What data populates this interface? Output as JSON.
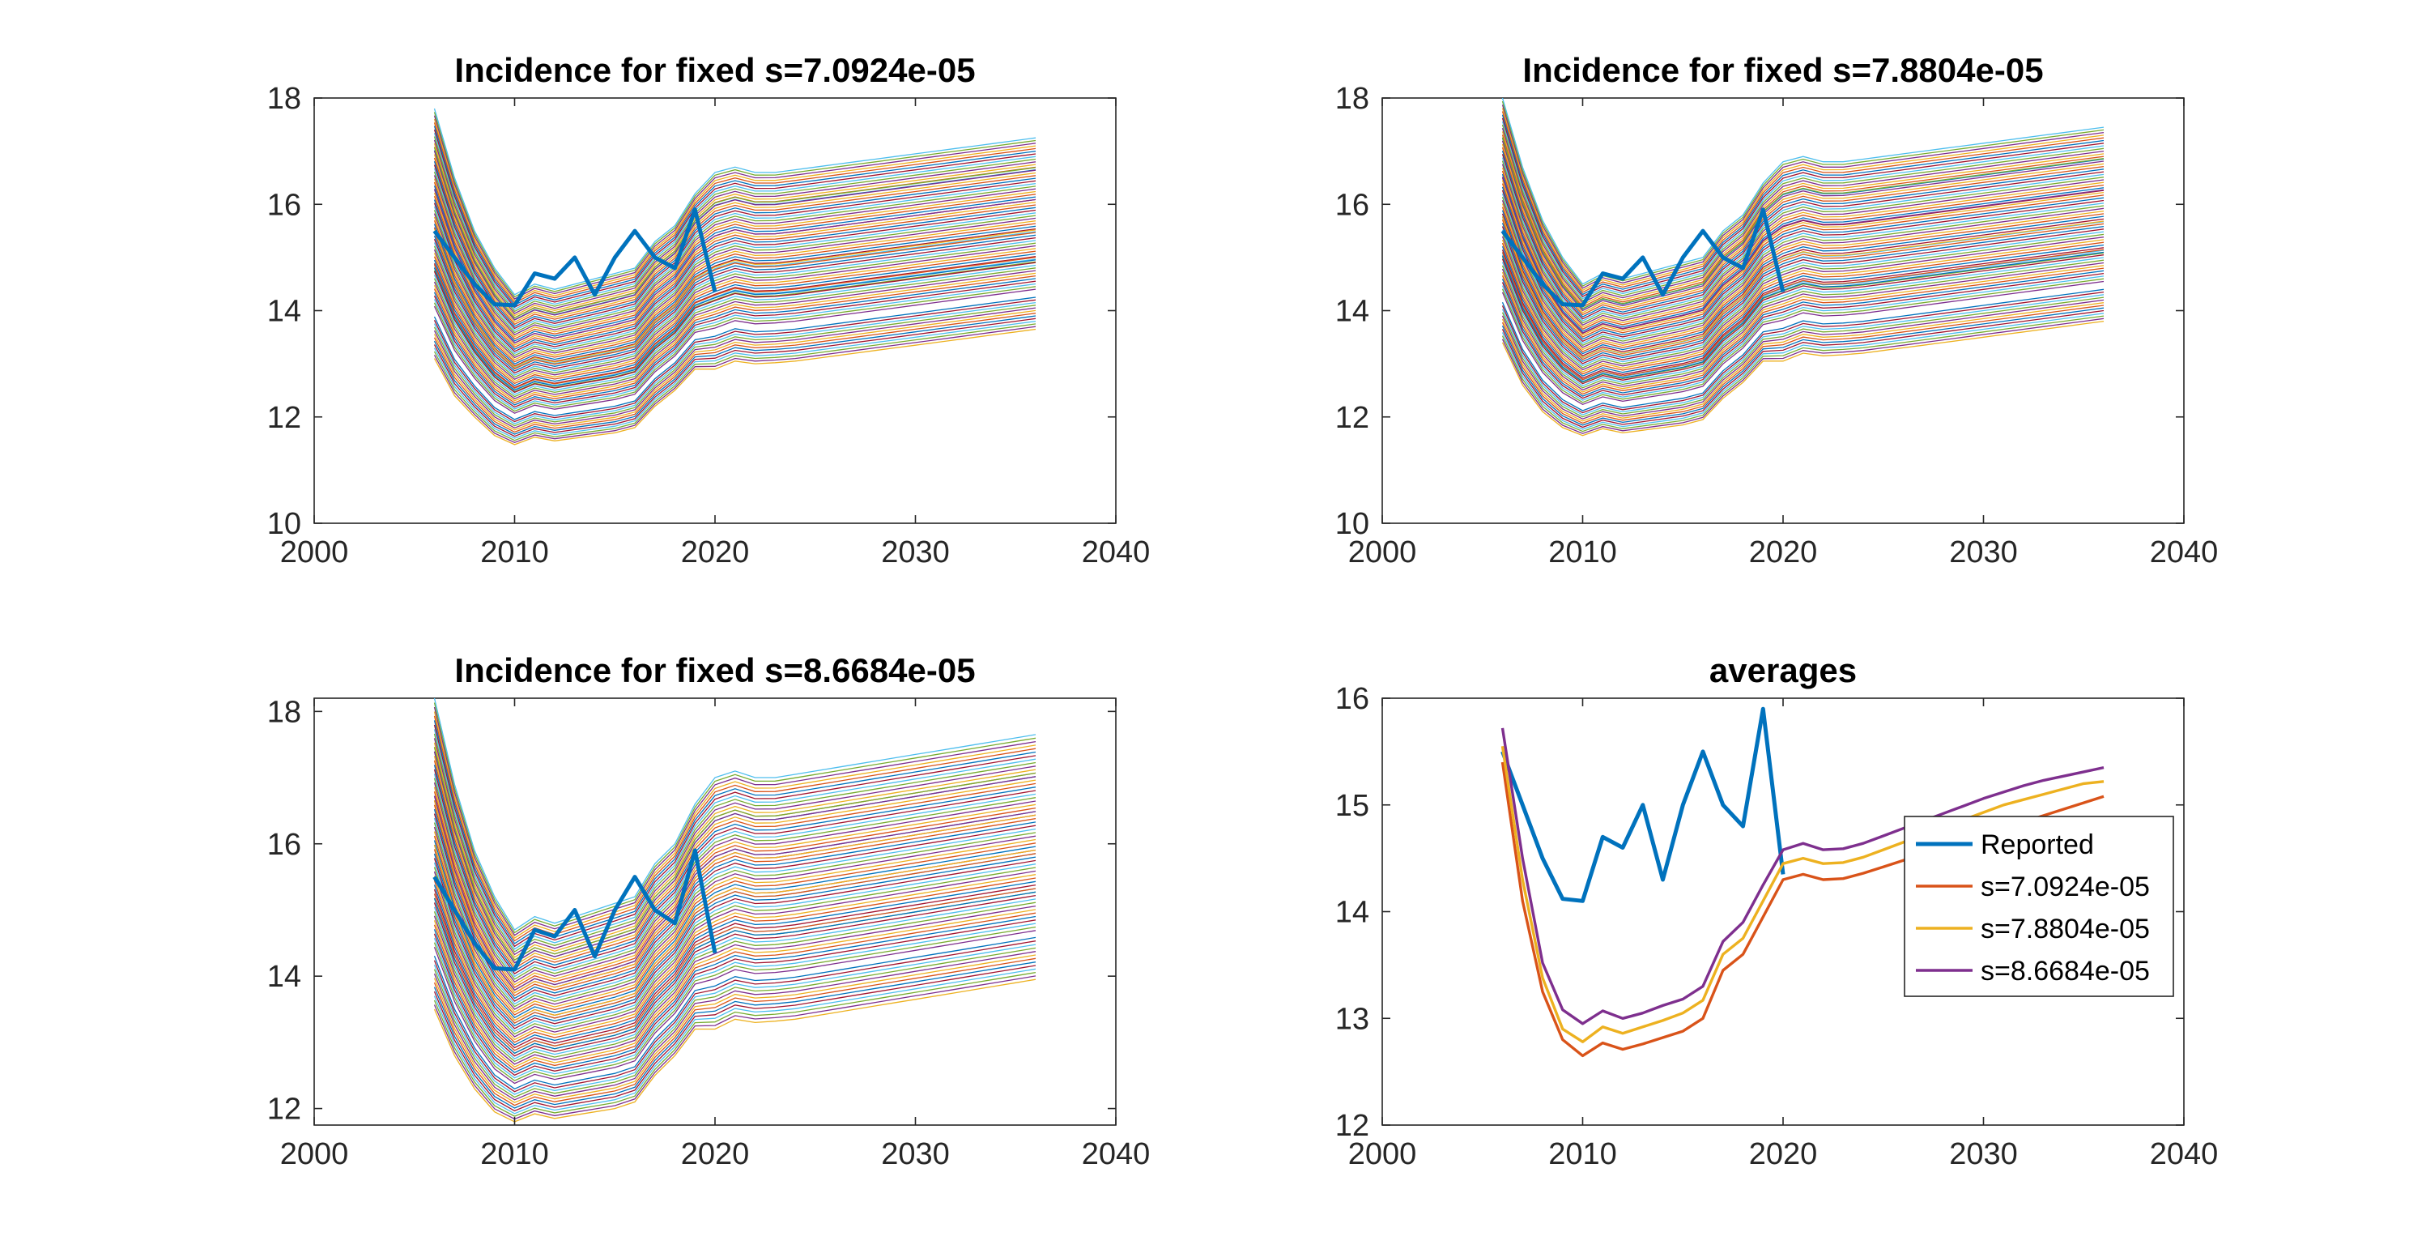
{
  "figure": {
    "background": "#ffffff",
    "axis_color": "#262626",
    "series_palette": [
      "#0072BD",
      "#D95319",
      "#EDB120",
      "#7E2F8E",
      "#77AC30",
      "#4DBEEE",
      "#A2142F"
    ]
  },
  "chart_data": [
    {
      "type": "line",
      "title": "Incidence for fixed s=7.0924e-05",
      "xlim": [
        2000,
        2040
      ],
      "ylim": [
        10,
        18
      ],
      "xticks": [
        "2000",
        "2010",
        "2020",
        "2030",
        "2040"
      ],
      "yticks": [
        "10",
        "12",
        "14",
        "16",
        "18"
      ],
      "grid": false,
      "x": [
        2006,
        2007,
        2008,
        2009,
        2010,
        2011,
        2012,
        2013,
        2014,
        2015,
        2016,
        2017,
        2018,
        2019,
        2020,
        2021,
        2022,
        2023,
        2024,
        2025,
        2026,
        2027,
        2028,
        2029,
        2030,
        2031,
        2032,
        2033,
        2034,
        2035,
        2036
      ],
      "ensemble": {
        "band_centers": [
          15.77,
          15.25,
          14.69,
          14.16,
          13.68,
          12.98
        ],
        "band_spread": 0.28,
        "lines_per_band": 13,
        "shape_offsets": [
          2.25,
          1.25,
          0.55,
          0.05,
          -0.2,
          -0.05,
          -0.15,
          -0.08,
          0.0,
          0.1,
          0.25,
          0.95,
          1.25,
          2.0,
          2.65,
          2.8,
          2.75,
          2.75,
          2.78,
          2.82,
          2.88,
          2.94,
          3.0,
          3.06,
          3.12,
          3.18,
          3.24,
          3.3,
          3.36,
          3.42,
          3.48
        ],
        "low_base": [
          13.1,
          12.4,
          12.0,
          11.65,
          11.48,
          11.62,
          11.55,
          11.6,
          11.65,
          11.7,
          11.8,
          12.2,
          12.5,
          12.9,
          12.9,
          13.05,
          13.0,
          13.02,
          13.05,
          13.1,
          13.15,
          13.2,
          13.25,
          13.3,
          13.35,
          13.4,
          13.45,
          13.5,
          13.55,
          13.6,
          13.65
        ],
        "high_base": [
          17.8,
          16.5,
          15.5,
          14.8,
          14.3,
          14.5,
          14.4,
          14.5,
          14.6,
          14.7,
          14.8,
          15.3,
          15.6,
          16.2,
          16.6,
          16.7,
          16.6,
          16.6,
          16.65,
          16.7,
          16.75,
          16.8,
          16.85,
          16.9,
          16.95,
          17.0,
          17.05,
          17.1,
          17.15,
          17.2,
          17.25
        ]
      },
      "series": [
        {
          "name": "Reported",
          "x": [
            2006,
            2007,
            2008,
            2009,
            2010,
            2011,
            2012,
            2013,
            2014,
            2015,
            2016,
            2017,
            2018,
            2019,
            2020
          ],
          "values": [
            15.5,
            15.0,
            14.5,
            14.12,
            14.1,
            14.7,
            14.6,
            15.0,
            14.3,
            15.0,
            15.5,
            15.0,
            14.8,
            15.9,
            14.35
          ],
          "color": "#0072BD"
        }
      ]
    },
    {
      "type": "line",
      "title": "Incidence for fixed s=7.8804e-05",
      "xlim": [
        2000,
        2040
      ],
      "ylim": [
        10,
        18
      ],
      "xticks": [
        "2000",
        "2010",
        "2020",
        "2030",
        "2040"
      ],
      "yticks": [
        "10",
        "12",
        "14",
        "16",
        "18"
      ],
      "grid": false,
      "x": [
        2006,
        2007,
        2008,
        2009,
        2010,
        2011,
        2012,
        2013,
        2014,
        2015,
        2016,
        2017,
        2018,
        2019,
        2020,
        2021,
        2022,
        2023,
        2024,
        2025,
        2026,
        2027,
        2028,
        2029,
        2030,
        2031,
        2032,
        2033,
        2034,
        2035,
        2036
      ],
      "ensemble": {
        "band_centers": [
          15.95,
          15.4,
          14.85,
          14.3,
          13.8,
          13.1
        ],
        "band_spread": 0.28,
        "lines_per_band": 13,
        "shape_offsets": [
          2.3,
          1.3,
          0.6,
          0.1,
          -0.18,
          -0.05,
          -0.12,
          -0.06,
          0.02,
          0.12,
          0.28,
          0.98,
          1.28,
          2.05,
          2.72,
          2.86,
          2.8,
          2.8,
          2.83,
          2.88,
          2.94,
          3.0,
          3.06,
          3.12,
          3.18,
          3.24,
          3.3,
          3.36,
          3.42,
          3.48,
          3.54
        ],
        "low_base": [
          13.4,
          12.6,
          12.1,
          11.8,
          11.65,
          11.78,
          11.7,
          11.75,
          11.8,
          11.85,
          11.95,
          12.35,
          12.65,
          13.05,
          13.05,
          13.2,
          13.15,
          13.17,
          13.2,
          13.25,
          13.3,
          13.35,
          13.4,
          13.45,
          13.5,
          13.55,
          13.6,
          13.65,
          13.7,
          13.75,
          13.8
        ],
        "high_base": [
          18.0,
          16.7,
          15.7,
          15.0,
          14.5,
          14.7,
          14.6,
          14.7,
          14.8,
          14.9,
          15.0,
          15.5,
          15.8,
          16.4,
          16.8,
          16.9,
          16.8,
          16.8,
          16.85,
          16.9,
          16.95,
          17.0,
          17.05,
          17.1,
          17.15,
          17.2,
          17.25,
          17.3,
          17.35,
          17.4,
          17.45
        ]
      },
      "series": [
        {
          "name": "Reported",
          "x": [
            2006,
            2007,
            2008,
            2009,
            2010,
            2011,
            2012,
            2013,
            2014,
            2015,
            2016,
            2017,
            2018,
            2019,
            2020
          ],
          "values": [
            15.5,
            15.0,
            14.5,
            14.12,
            14.1,
            14.7,
            14.6,
            15.0,
            14.3,
            15.0,
            15.5,
            15.0,
            14.8,
            15.9,
            14.35
          ],
          "color": "#0072BD"
        }
      ]
    },
    {
      "type": "line",
      "title": "Incidence for fixed s=8.6684e-05",
      "xlim": [
        2000,
        2040
      ],
      "ylim": [
        11.75,
        18.2
      ],
      "xticks": [
        "2000",
        "2010",
        "2020",
        "2030",
        "2040"
      ],
      "yticks": [
        "12",
        "14",
        "16",
        "18"
      ],
      "grid": false,
      "x": [
        2006,
        2007,
        2008,
        2009,
        2010,
        2011,
        2012,
        2013,
        2014,
        2015,
        2016,
        2017,
        2018,
        2019,
        2020,
        2021,
        2022,
        2023,
        2024,
        2025,
        2026,
        2027,
        2028,
        2029,
        2030,
        2031,
        2032,
        2033,
        2034,
        2035,
        2036
      ],
      "ensemble": {
        "band_centers": [
          16.15,
          15.6,
          15.05,
          14.5,
          13.95,
          13.25
        ],
        "band_spread": 0.3,
        "lines_per_band": 13,
        "shape_offsets": [
          2.35,
          1.35,
          0.65,
          0.12,
          -0.15,
          -0.02,
          -0.1,
          -0.04,
          0.04,
          0.14,
          0.3,
          1.0,
          1.3,
          2.1,
          2.78,
          2.92,
          2.86,
          2.86,
          2.89,
          2.94,
          3.0,
          3.06,
          3.12,
          3.18,
          3.24,
          3.3,
          3.36,
          3.42,
          3.48,
          3.54,
          3.6
        ],
        "low_base": [
          13.5,
          12.8,
          12.3,
          11.95,
          11.8,
          11.92,
          11.85,
          11.9,
          11.95,
          12.0,
          12.1,
          12.5,
          12.8,
          13.2,
          13.2,
          13.35,
          13.3,
          13.32,
          13.35,
          13.4,
          13.45,
          13.5,
          13.55,
          13.6,
          13.65,
          13.7,
          13.75,
          13.8,
          13.85,
          13.9,
          13.95
        ],
        "high_base": [
          18.2,
          16.9,
          15.9,
          15.2,
          14.7,
          14.9,
          14.8,
          14.9,
          15.0,
          15.1,
          15.2,
          15.7,
          16.0,
          16.6,
          17.0,
          17.1,
          17.0,
          17.0,
          17.05,
          17.1,
          17.15,
          17.2,
          17.25,
          17.3,
          17.35,
          17.4,
          17.45,
          17.5,
          17.55,
          17.6,
          17.65
        ]
      },
      "series": [
        {
          "name": "Reported",
          "x": [
            2006,
            2007,
            2008,
            2009,
            2010,
            2011,
            2012,
            2013,
            2014,
            2015,
            2016,
            2017,
            2018,
            2019,
            2020
          ],
          "values": [
            15.5,
            15.0,
            14.5,
            14.12,
            14.1,
            14.7,
            14.6,
            15.0,
            14.3,
            15.0,
            15.5,
            15.0,
            14.8,
            15.9,
            14.35
          ],
          "color": "#0072BD"
        }
      ]
    },
    {
      "type": "line",
      "title": "averages",
      "xlim": [
        2000,
        2040
      ],
      "ylim": [
        12,
        16
      ],
      "xticks": [
        "2000",
        "2010",
        "2020",
        "2030",
        "2040"
      ],
      "yticks": [
        "12",
        "13",
        "14",
        "15",
        "16"
      ],
      "grid": false,
      "legend": "right",
      "x": [
        2006,
        2007,
        2008,
        2009,
        2010,
        2011,
        2012,
        2013,
        2014,
        2015,
        2016,
        2017,
        2018,
        2019,
        2020,
        2021,
        2022,
        2023,
        2024,
        2025,
        2026,
        2027,
        2028,
        2029,
        2030,
        2031,
        2032,
        2033,
        2034,
        2035,
        2036
      ],
      "series": [
        {
          "name": "Reported",
          "x": [
            2006,
            2007,
            2008,
            2009,
            2010,
            2011,
            2012,
            2013,
            2014,
            2015,
            2016,
            2017,
            2018,
            2019,
            2020
          ],
          "values": [
            15.5,
            15.0,
            14.5,
            14.12,
            14.1,
            14.7,
            14.6,
            15.0,
            14.3,
            15.0,
            15.5,
            15.0,
            14.8,
            15.9,
            14.35
          ],
          "color": "#0072BD"
        },
        {
          "name": "s=7.0924e-05",
          "values": [
            15.4,
            14.1,
            13.25,
            12.8,
            12.65,
            12.77,
            12.71,
            12.76,
            12.82,
            12.88,
            13.0,
            13.45,
            13.6,
            13.95,
            14.3,
            14.35,
            14.3,
            14.31,
            14.36,
            14.42,
            14.48,
            14.54,
            14.6,
            14.66,
            14.72,
            14.78,
            14.84,
            14.9,
            14.96,
            15.02,
            15.08
          ],
          "color": "#D95319"
        },
        {
          "name": "s=7.8804e-05",
          "values": [
            15.55,
            14.3,
            13.38,
            12.9,
            12.78,
            12.92,
            12.86,
            12.92,
            12.98,
            13.05,
            13.17,
            13.6,
            13.75,
            14.1,
            14.45,
            14.5,
            14.45,
            14.46,
            14.51,
            14.58,
            14.65,
            14.72,
            14.79,
            14.86,
            14.93,
            15.0,
            15.05,
            15.1,
            15.15,
            15.2,
            15.22
          ],
          "color": "#EDB120"
        },
        {
          "name": "s=8.6684e-05",
          "values": [
            15.72,
            14.5,
            13.52,
            13.08,
            12.95,
            13.07,
            13.0,
            13.05,
            13.12,
            13.18,
            13.3,
            13.72,
            13.9,
            14.25,
            14.58,
            14.64,
            14.58,
            14.59,
            14.64,
            14.71,
            14.78,
            14.85,
            14.92,
            14.99,
            15.06,
            15.12,
            15.18,
            15.23,
            15.27,
            15.31,
            15.35
          ],
          "color": "#7E2F8E"
        }
      ]
    }
  ]
}
